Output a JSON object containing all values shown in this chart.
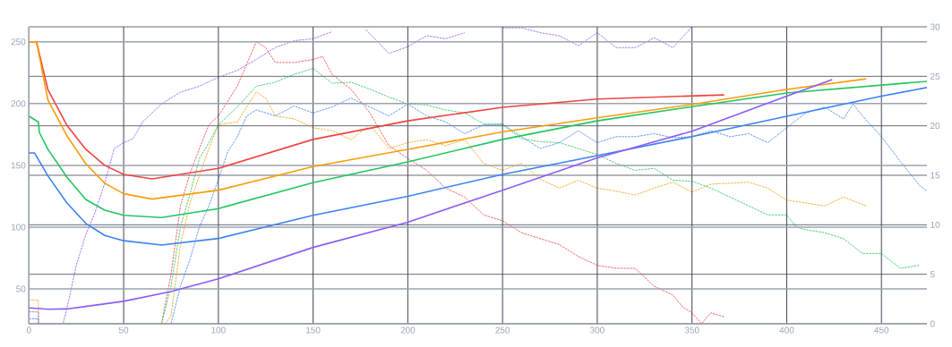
{
  "chart_data": {
    "type": "line",
    "xlim": [
      0,
      474
    ],
    "xticks": [
      0,
      50,
      100,
      150,
      200,
      250,
      300,
      350,
      400,
      450
    ],
    "ylim": [
      21.8,
      262.1
    ],
    "yticks": [
      50,
      100,
      150,
      200,
      250
    ],
    "y2lim": [
      0,
      30
    ],
    "y2ticks": [
      0,
      5,
      10,
      15,
      20,
      25,
      30
    ],
    "grid": true,
    "series": [
      {
        "color": "#ef4444",
        "line_style": "solid",
        "x": [
          0,
          4,
          10,
          20,
          30,
          40,
          50,
          65,
          100,
          150,
          200,
          250,
          300,
          367
        ],
        "values": [
          250,
          250,
          211.4,
          182.5,
          163,
          150,
          142.7,
          139,
          147.5,
          171,
          186,
          197,
          203.7,
          207
        ]
      },
      {
        "color": "#f59e0b",
        "line_style": "solid",
        "x": [
          0,
          4,
          10,
          20,
          30,
          40,
          50,
          65,
          100,
          150,
          200,
          250,
          300,
          350,
          400,
          442
        ],
        "values": [
          250,
          250,
          203,
          174,
          151.4,
          135.5,
          127,
          122.7,
          129.9,
          149,
          163,
          177,
          188.5,
          199.3,
          211.4,
          220
        ]
      },
      {
        "color": "#22c55e",
        "line_style": "solid",
        "x": [
          0,
          3,
          5,
          5.5,
          10,
          20,
          30,
          40,
          50,
          70,
          100,
          150,
          200,
          250,
          300,
          350,
          400,
          474
        ],
        "values": [
          189.7,
          187,
          185,
          176.7,
          163,
          140.5,
          122.4,
          113.7,
          109.6,
          107.7,
          115,
          136,
          152.8,
          171,
          186,
          197.5,
          208.5,
          218
        ]
      },
      {
        "color": "#3b82f6",
        "line_style": "solid",
        "x": [
          0,
          3,
          10,
          20,
          30,
          40,
          50,
          70,
          100,
          150,
          200,
          250,
          300,
          350,
          400,
          450,
          474
        ],
        "values": [
          160,
          160,
          141.5,
          119.7,
          103,
          93.3,
          89,
          85.5,
          90.8,
          109.6,
          125,
          142.7,
          157.9,
          173.3,
          189.7,
          206,
          213
        ]
      },
      {
        "color": "#8b5cf6",
        "line_style": "solid",
        "x": [
          0,
          10,
          20,
          30,
          50,
          75,
          100,
          150,
          200,
          250,
          300,
          350,
          400,
          424
        ],
        "values": [
          34.7,
          33.6,
          33.8,
          35.8,
          40,
          47.9,
          58.2,
          83.6,
          104,
          129.9,
          156,
          177.6,
          206,
          219.4
        ]
      },
      {
        "color": "#ef4444",
        "line_style": "dashed",
        "axis": "y2",
        "x": [
          70,
          75,
          80,
          85,
          90,
          95,
          100,
          110,
          120,
          125,
          130,
          140,
          150,
          155,
          160,
          170,
          180,
          190,
          200,
          210,
          220,
          230,
          240,
          250,
          260,
          270,
          280,
          290,
          300,
          310,
          320,
          330,
          340,
          345,
          350,
          355,
          360,
          367
        ],
        "values": [
          0,
          5,
          11.9,
          15.2,
          17.7,
          20.1,
          21,
          24,
          28.5,
          27.9,
          26.4,
          26.4,
          26.7,
          27,
          25.2,
          23.7,
          21.3,
          18,
          16.7,
          15.5,
          13.7,
          12.8,
          11,
          10.4,
          9.2,
          8.6,
          8,
          6.8,
          5.9,
          5.6,
          5.6,
          3.8,
          2.9,
          1.7,
          1.1,
          0,
          1.1,
          0.7
        ]
      },
      {
        "color": "#f59e0b",
        "line_style": "dashed",
        "axis": "y2",
        "x": [
          0,
          5,
          5,
          72,
          75,
          80,
          85,
          90,
          95,
          100,
          110,
          115,
          120,
          125,
          130,
          140,
          150,
          160,
          170,
          180,
          190,
          200,
          210,
          220,
          230,
          240,
          250,
          260,
          270,
          280,
          290,
          300,
          310,
          320,
          330,
          340,
          350,
          360,
          370,
          380,
          390,
          400,
          410,
          420,
          430,
          442
        ],
        "values": [
          2.4,
          2.4,
          0,
          0,
          0.8,
          8,
          12.2,
          15,
          17.7,
          20.1,
          20.4,
          21.9,
          23.4,
          22.8,
          21,
          20.7,
          19.8,
          19.5,
          18.6,
          20.1,
          17.7,
          18.3,
          18.6,
          18,
          18.6,
          16.2,
          15.5,
          16.2,
          14.6,
          13.7,
          14.5,
          13.7,
          13.4,
          13,
          13.7,
          14.3,
          13.3,
          14.1,
          14.2,
          14.3,
          13.7,
          12.5,
          12.2,
          11.9,
          12.8,
          11.9
        ]
      },
      {
        "color": "#22c55e",
        "line_style": "dashed",
        "axis": "y2",
        "x": [
          70,
          75,
          80,
          85,
          90,
          95,
          100,
          110,
          120,
          130,
          140,
          150,
          160,
          170,
          180,
          190,
          200,
          210,
          220,
          230,
          240,
          250,
          260,
          270,
          280,
          290,
          300,
          310,
          320,
          330,
          340,
          350,
          360,
          370,
          380,
          390,
          400,
          405,
          410,
          420,
          430,
          440,
          450,
          460,
          470
        ],
        "values": [
          0,
          3.8,
          9.8,
          13.1,
          16.7,
          18.3,
          20.1,
          21.9,
          24,
          24.4,
          25.2,
          25.8,
          24.3,
          24.4,
          23.7,
          22.9,
          22.2,
          22.1,
          21.6,
          21.3,
          20.2,
          20.1,
          18.7,
          18.4,
          18.3,
          17.7,
          17.1,
          16.2,
          15.5,
          15.7,
          14.5,
          14.4,
          13.7,
          12.8,
          11.9,
          11,
          11,
          9.8,
          9.5,
          9.2,
          8.6,
          7.1,
          7.1,
          5.6,
          5.9
        ]
      },
      {
        "color": "#3b82f6",
        "line_style": "dashed",
        "axis": "y2",
        "x": [
          0,
          5,
          5,
          75,
          80,
          85,
          90,
          95,
          100,
          105,
          110,
          115,
          120,
          130,
          140,
          150,
          160,
          170,
          180,
          190,
          200,
          210,
          220,
          230,
          240,
          250,
          260,
          270,
          280,
          290,
          300,
          310,
          320,
          330,
          340,
          350,
          360,
          370,
          380,
          390,
          400,
          410,
          420,
          430,
          435,
          440,
          450,
          460,
          470,
          474
        ],
        "values": [
          0.5,
          0.5,
          0,
          0,
          3.8,
          6.5,
          9.8,
          11.9,
          14.6,
          17.4,
          18.9,
          21,
          21.6,
          21,
          22,
          21.3,
          21.9,
          22.8,
          21.9,
          21,
          22.2,
          21,
          20.4,
          19.2,
          20.1,
          20.2,
          18.9,
          17.7,
          18.3,
          19.5,
          18.3,
          18.9,
          18.9,
          19.2,
          18.8,
          18.9,
          19.5,
          18.9,
          19.2,
          18.3,
          19.8,
          21.3,
          21.9,
          20.7,
          22.2,
          21,
          18.9,
          16.4,
          14,
          13.4
        ]
      },
      {
        "color": "#8b5cf6",
        "line_style": "dashed",
        "axis": "y2",
        "x": [
          0,
          5,
          5,
          18,
          20,
          25,
          30,
          35,
          40,
          45,
          50,
          55,
          60,
          70,
          80,
          90,
          100,
          110,
          120,
          130,
          140,
          150,
          160,
          170,
          178,
          190,
          200,
          210,
          220,
          230,
          240,
          250,
          260,
          270,
          280,
          290,
          300,
          310,
          320,
          330,
          340,
          350
        ],
        "values": [
          1.2,
          1.2,
          0,
          0,
          1.5,
          5.9,
          9,
          11.3,
          14.2,
          17.7,
          18.3,
          18.7,
          20.4,
          22.2,
          23.4,
          24,
          24.9,
          25.6,
          26.7,
          27.9,
          28.6,
          28.8,
          29.5,
          null,
          29.7,
          27.3,
          28,
          29.1,
          28.8,
          29.4,
          null,
          29.9,
          29.9,
          29.4,
          29.1,
          28.1,
          29.4,
          27.9,
          27.9,
          28.9,
          27.9,
          30
        ]
      }
    ]
  }
}
